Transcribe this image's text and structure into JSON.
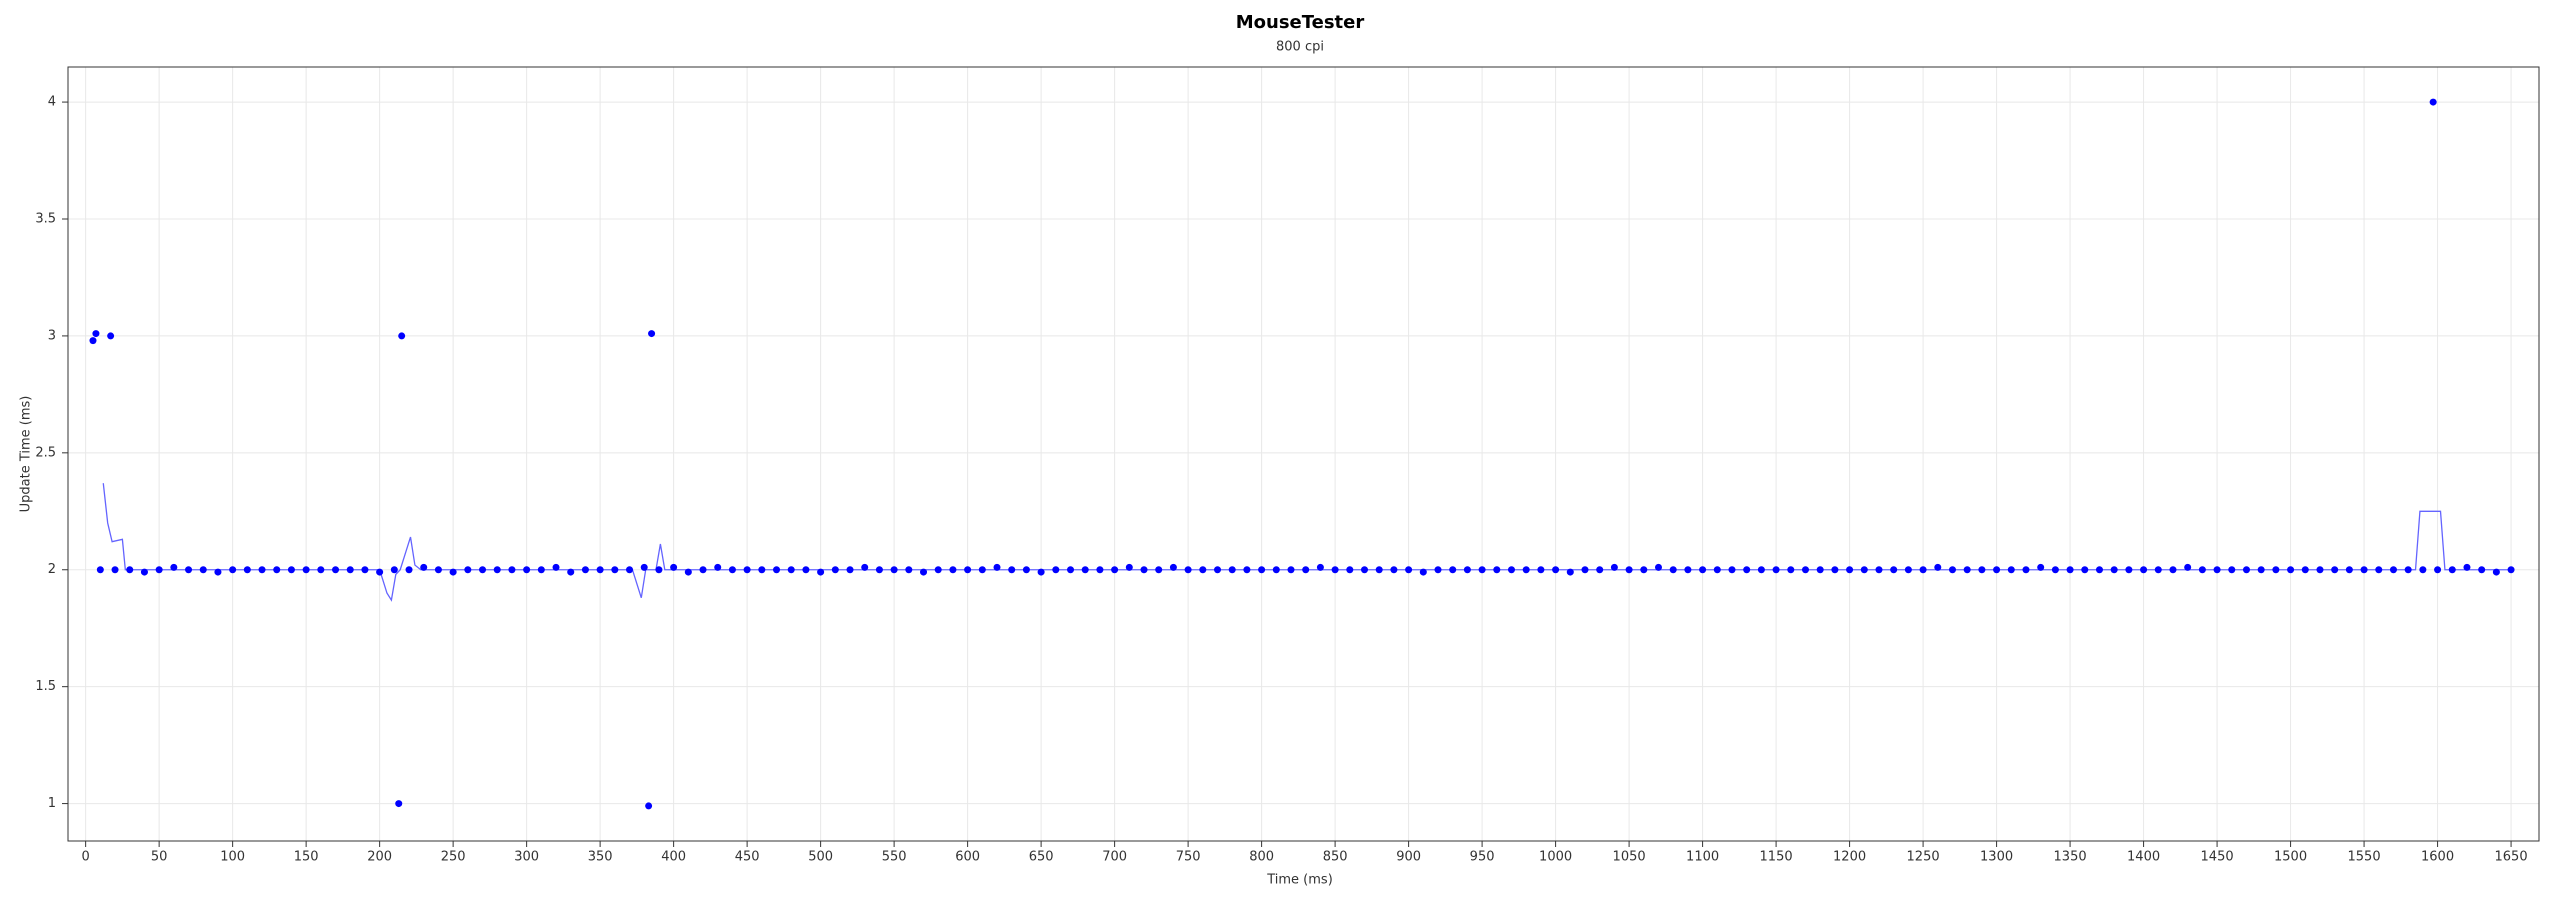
{
  "chart_data": {
    "type": "scatter",
    "title": "MouseTester",
    "subtitle": "800 cpi",
    "x_label": "Time (ms)",
    "y_label": "Update Time (ms)",
    "xlim": [
      -12,
      1669
    ],
    "ylim": [
      0.84,
      4.15
    ],
    "xticks": [
      0,
      50,
      100,
      150,
      200,
      250,
      300,
      350,
      400,
      450,
      500,
      550,
      600,
      650,
      700,
      750,
      800,
      850,
      900,
      950,
      1000,
      1050,
      1100,
      1150,
      1200,
      1250,
      1300,
      1350,
      1400,
      1450,
      1500,
      1550,
      1600,
      1650
    ],
    "yticks": [
      1,
      1.5,
      2,
      2.5,
      3,
      3.5,
      4
    ],
    "grid": true,
    "series": [
      {
        "color": "#0000ff",
        "marker": "dot",
        "x": [
          5,
          7,
          10,
          17,
          20,
          30,
          40,
          50,
          60,
          70,
          80,
          90,
          100,
          110,
          120,
          130,
          140,
          150,
          160,
          170,
          180,
          190,
          200,
          210,
          213,
          215,
          220,
          230,
          240,
          250,
          260,
          270,
          280,
          290,
          300,
          310,
          320,
          330,
          340,
          350,
          360,
          370,
          380,
          383,
          385,
          390,
          400,
          410,
          420,
          430,
          440,
          450,
          460,
          470,
          480,
          490,
          500,
          510,
          520,
          530,
          540,
          550,
          560,
          570,
          580,
          590,
          600,
          610,
          620,
          630,
          640,
          650,
          660,
          670,
          680,
          690,
          700,
          710,
          720,
          730,
          740,
          750,
          760,
          770,
          780,
          790,
          800,
          810,
          820,
          830,
          840,
          850,
          860,
          870,
          880,
          890,
          900,
          910,
          920,
          930,
          940,
          950,
          960,
          970,
          980,
          990,
          1000,
          1010,
          1020,
          1030,
          1040,
          1050,
          1060,
          1070,
          1080,
          1090,
          1100,
          1110,
          1120,
          1130,
          1140,
          1150,
          1160,
          1170,
          1180,
          1190,
          1200,
          1210,
          1220,
          1230,
          1240,
          1250,
          1260,
          1270,
          1280,
          1290,
          1300,
          1310,
          1320,
          1330,
          1340,
          1350,
          1360,
          1370,
          1380,
          1390,
          1400,
          1410,
          1420,
          1430,
          1440,
          1450,
          1460,
          1470,
          1480,
          1490,
          1500,
          1510,
          1520,
          1530,
          1540,
          1550,
          1560,
          1570,
          1580,
          1590,
          1597,
          1600,
          1610,
          1620,
          1630,
          1640,
          1650
        ],
        "values": [
          2.98,
          3.01,
          2,
          3,
          2,
          2,
          1.99,
          2,
          2.01,
          2,
          2,
          1.99,
          2,
          2,
          2,
          2,
          2,
          2,
          2,
          2,
          2,
          2,
          1.99,
          2,
          1,
          3,
          2,
          2.01,
          2,
          1.99,
          2,
          2,
          2,
          2,
          2,
          2,
          2.01,
          1.99,
          2,
          2,
          2,
          2,
          2.01,
          0.99,
          3.01,
          2,
          2.01,
          1.99,
          2,
          2.01,
          2,
          2,
          2,
          2,
          2,
          2,
          1.99,
          2,
          2,
          2.01,
          2,
          2,
          2,
          1.99,
          2,
          2,
          2,
          2,
          2.01,
          2,
          2,
          1.99,
          2,
          2,
          2,
          2,
          2,
          2.01,
          2,
          2,
          2.01,
          2,
          2,
          2,
          2,
          2,
          2,
          2,
          2,
          2,
          2.01,
          2,
          2,
          2,
          2,
          2,
          2,
          1.99,
          2,
          2,
          2,
          2,
          2,
          2,
          2,
          2,
          2,
          1.99,
          2,
          2,
          2.01,
          2,
          2,
          2.01,
          2,
          2,
          2,
          2,
          2,
          2,
          2,
          2,
          2,
          2,
          2,
          2,
          2,
          2,
          2,
          2,
          2,
          2,
          2.01,
          2,
          2,
          2,
          2,
          2,
          2,
          2.01,
          2,
          2,
          2,
          2,
          2,
          2,
          2,
          2,
          2,
          2.01,
          2,
          2,
          2,
          2,
          2,
          2,
          2,
          2,
          2,
          2,
          2,
          2,
          2,
          2,
          2,
          2,
          4,
          2,
          2,
          2.01,
          2,
          1.99,
          2
        ]
      },
      {
        "color": "#6464ff",
        "marker": "line",
        "x": [
          12,
          15,
          18,
          25,
          27,
          200,
          205,
          208,
          211,
          214,
          218,
          221,
          224,
          228,
          372,
          376,
          378,
          381,
          388,
          391,
          394,
          1585,
          1588,
          1592,
          1602,
          1605,
          1650
        ],
        "values": [
          2.37,
          2.2,
          2.12,
          2.13,
          2,
          2,
          1.9,
          1.87,
          1.98,
          2,
          2.08,
          2.14,
          2.02,
          2,
          2,
          1.92,
          1.88,
          2,
          2,
          2.11,
          2,
          2,
          2.25,
          2.25,
          2.25,
          2,
          2
        ]
      }
    ]
  }
}
